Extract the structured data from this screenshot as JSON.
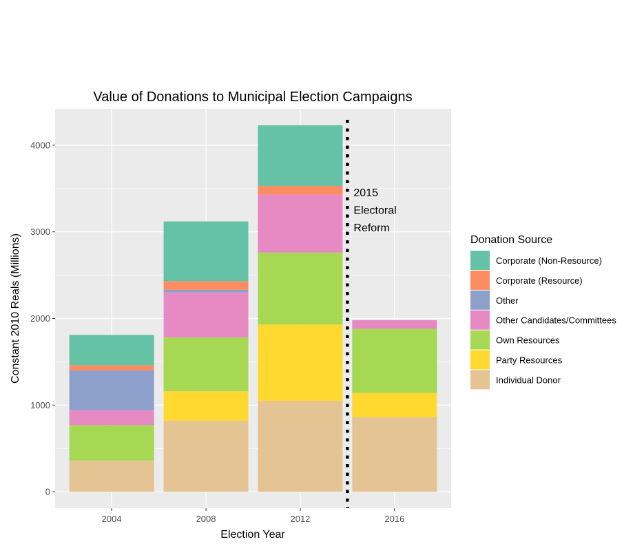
{
  "chart_data": {
    "type": "bar",
    "stacked": true,
    "title": "Value of Donations to Municipal Election Campaigns",
    "xlabel": "Election Year",
    "ylabel": "Constant 2010 Reals (Millions)",
    "categories": [
      "2004",
      "2008",
      "2012",
      "2016"
    ],
    "yticks": [
      "0",
      "1000",
      "2000",
      "3000",
      "4000"
    ],
    "ylim": [
      -190,
      4420
    ],
    "grid": true,
    "legend": {
      "title": "Donation Source",
      "placement": "right"
    },
    "series": [
      {
        "name": "Individual Donor",
        "color": "#E5C494",
        "values": [
          360,
          820,
          1050,
          860
        ]
      },
      {
        "name": "Party Resources",
        "color": "#FFD92F",
        "values": [
          0,
          340,
          880,
          280
        ]
      },
      {
        "name": "Own Resources",
        "color": "#A6D854",
        "values": [
          410,
          620,
          830,
          740
        ]
      },
      {
        "name": "Other Candidates/Committees",
        "color": "#E78AC3",
        "values": [
          170,
          520,
          670,
          100
        ]
      },
      {
        "name": "Other",
        "color": "#8DA0CB",
        "values": [
          460,
          30,
          0,
          0
        ]
      },
      {
        "name": "Corporate (Resource)",
        "color": "#FC8D62",
        "values": [
          60,
          100,
          100,
          0
        ]
      },
      {
        "name": "Corporate (Non-Resource)",
        "color": "#66C2A5",
        "values": [
          350,
          690,
          700,
          0
        ]
      }
    ],
    "legend_order": [
      "Corporate (Non-Resource)",
      "Corporate (Resource)",
      "Other",
      "Other Candidates/Committees",
      "Own Resources",
      "Party Resources",
      "Individual Donor"
    ],
    "annotation": {
      "lines": [
        "2015",
        "Electoral",
        "Reform"
      ],
      "x_value": 2014,
      "line_style": "dotted"
    }
  }
}
